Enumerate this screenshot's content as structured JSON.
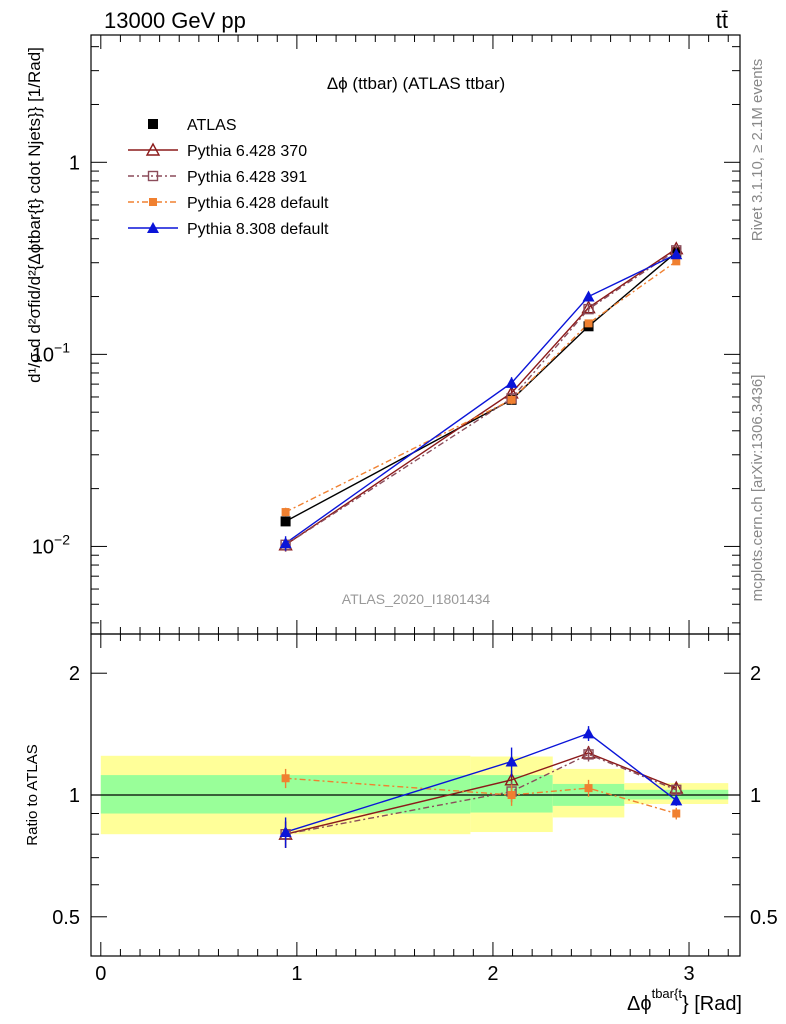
{
  "header": {
    "left": "13000 GeV pp",
    "right": "tt̄"
  },
  "side_labels": {
    "rivet": "Rivet 3.1.10, ≥ 2.1M events",
    "source": "mcplots.cern.ch [arXiv:1306.3436]"
  },
  "chart_data": [
    {
      "type": "line",
      "title": "Δϕ (ttbar) (ATLAS ttbar)",
      "watermark": "ATLAS_2020_I1801434",
      "ylabel": "d¹/σ d d²σfid/d²{Δϕtbar{t} cdot Njets}} [1/Rad]",
      "yscale": "log",
      "xlim": [
        -0.05,
        3.26
      ],
      "ylim": [
        0.0035,
        4.6
      ],
      "yticks": [
        {
          "value": 0.01,
          "base": "10",
          "exp": "−2"
        },
        {
          "value": 0.1,
          "base": "10",
          "exp": "−1"
        },
        {
          "value": 1,
          "base": "1",
          "exp": ""
        }
      ],
      "legend_position": "top-left",
      "bins": [
        0,
        1.885,
        2.305,
        2.67,
        3.2
      ],
      "series": [
        {
          "name": "ATLAS",
          "color": "#000000",
          "marker": "square-filled",
          "dash": "",
          "x": [
            0.9425,
            2.095,
            2.4875,
            2.935
          ],
          "y": [
            0.0135,
            0.058,
            0.14,
            0.34
          ],
          "err": [
            0.0006,
            0.0025,
            0.006,
            0.012
          ]
        },
        {
          "name": "Pythia 6.428 370",
          "color": "#8b1a1a",
          "marker": "triangle-open",
          "dash": "",
          "x": [
            0.9425,
            2.095,
            2.4875,
            2.935
          ],
          "y": [
            0.0102,
            0.063,
            0.175,
            0.355
          ],
          "err": [
            0.0008,
            0.003,
            0.007,
            0.012
          ]
        },
        {
          "name": "Pythia 6.428 391",
          "color": "#8b4c5a",
          "marker": "square-open",
          "dash": "6,3,2,3",
          "x": [
            0.9425,
            2.095,
            2.4875,
            2.935
          ],
          "y": [
            0.0102,
            0.059,
            0.172,
            0.348
          ],
          "err": [
            0.0008,
            0.003,
            0.007,
            0.012
          ]
        },
        {
          "name": "Pythia 6.428 default",
          "color": "#f08030",
          "marker": "square-filled-small",
          "dash": "6,3,2,3",
          "x": [
            0.9425,
            2.095,
            2.4875,
            2.935
          ],
          "y": [
            0.0151,
            0.058,
            0.145,
            0.305
          ],
          "err": [
            0.0008,
            0.003,
            0.006,
            0.01
          ]
        },
        {
          "name": "Pythia 8.308 default",
          "color": "#0a14d8",
          "marker": "triangle-filled",
          "dash": "",
          "x": [
            0.9425,
            2.095,
            2.4875,
            2.935
          ],
          "y": [
            0.0104,
            0.071,
            0.2,
            0.332
          ],
          "err": [
            0.0009,
            0.005,
            0.009,
            0.012
          ]
        }
      ]
    },
    {
      "type": "line",
      "ylabel": "Ratio to ATLAS",
      "xlabel_main": "Δϕ",
      "xlabel_sup": "tbar{t",
      "xlabel_tail": "} [Rad]",
      "yscale": "log",
      "xlim": [
        -0.05,
        3.26
      ],
      "ylim": [
        0.4,
        2.5
      ],
      "xticks": [
        0,
        1,
        2,
        3
      ],
      "yticks": [
        0.5,
        1,
        2
      ],
      "bands": [
        {
          "x0": 0,
          "x1": 1.885,
          "inner": [
            0.9,
            1.12
          ],
          "outer": [
            0.8,
            1.25
          ]
        },
        {
          "x0": 1.885,
          "x1": 2.305,
          "inner": [
            0.905,
            1.12
          ],
          "outer": [
            0.81,
            1.245
          ]
        },
        {
          "x0": 2.305,
          "x1": 2.67,
          "inner": [
            0.94,
            1.065
          ],
          "outer": [
            0.88,
            1.16
          ]
        },
        {
          "x0": 2.67,
          "x1": 3.2,
          "inner": [
            0.975,
            1.03
          ],
          "outer": [
            0.95,
            1.07
          ]
        }
      ],
      "series": [
        {
          "name": "Pythia 6.428 370",
          "color": "#8b1a1a",
          "marker": "triangle-open",
          "dash": "",
          "x": [
            0.9425,
            2.095,
            2.4875,
            2.935
          ],
          "y": [
            0.8,
            1.09,
            1.27,
            1.04
          ],
          "err": [
            0.06,
            0.06,
            0.05,
            0.03
          ]
        },
        {
          "name": "Pythia 6.428 391",
          "color": "#8b4c5a",
          "marker": "square-open",
          "dash": "6,3,2,3",
          "x": [
            0.9425,
            2.095,
            2.4875,
            2.935
          ],
          "y": [
            0.8,
            1.02,
            1.26,
            1.03
          ],
          "err": [
            0.06,
            0.06,
            0.05,
            0.03
          ]
        },
        {
          "name": "Pythia 6.428 default",
          "color": "#f08030",
          "marker": "square-filled-small",
          "dash": "6,3,2,3",
          "x": [
            0.9425,
            2.095,
            2.4875,
            2.935
          ],
          "y": [
            1.1,
            1.0,
            1.04,
            0.9
          ],
          "err": [
            0.06,
            0.06,
            0.05,
            0.03
          ]
        },
        {
          "name": "Pythia 8.308 default",
          "color": "#0a14d8",
          "marker": "triangle-filled",
          "dash": "",
          "x": [
            0.9425,
            2.095,
            2.4875,
            2.935
          ],
          "y": [
            0.81,
            1.21,
            1.42,
            0.97
          ],
          "err": [
            0.07,
            0.1,
            0.06,
            0.03
          ]
        }
      ]
    }
  ]
}
